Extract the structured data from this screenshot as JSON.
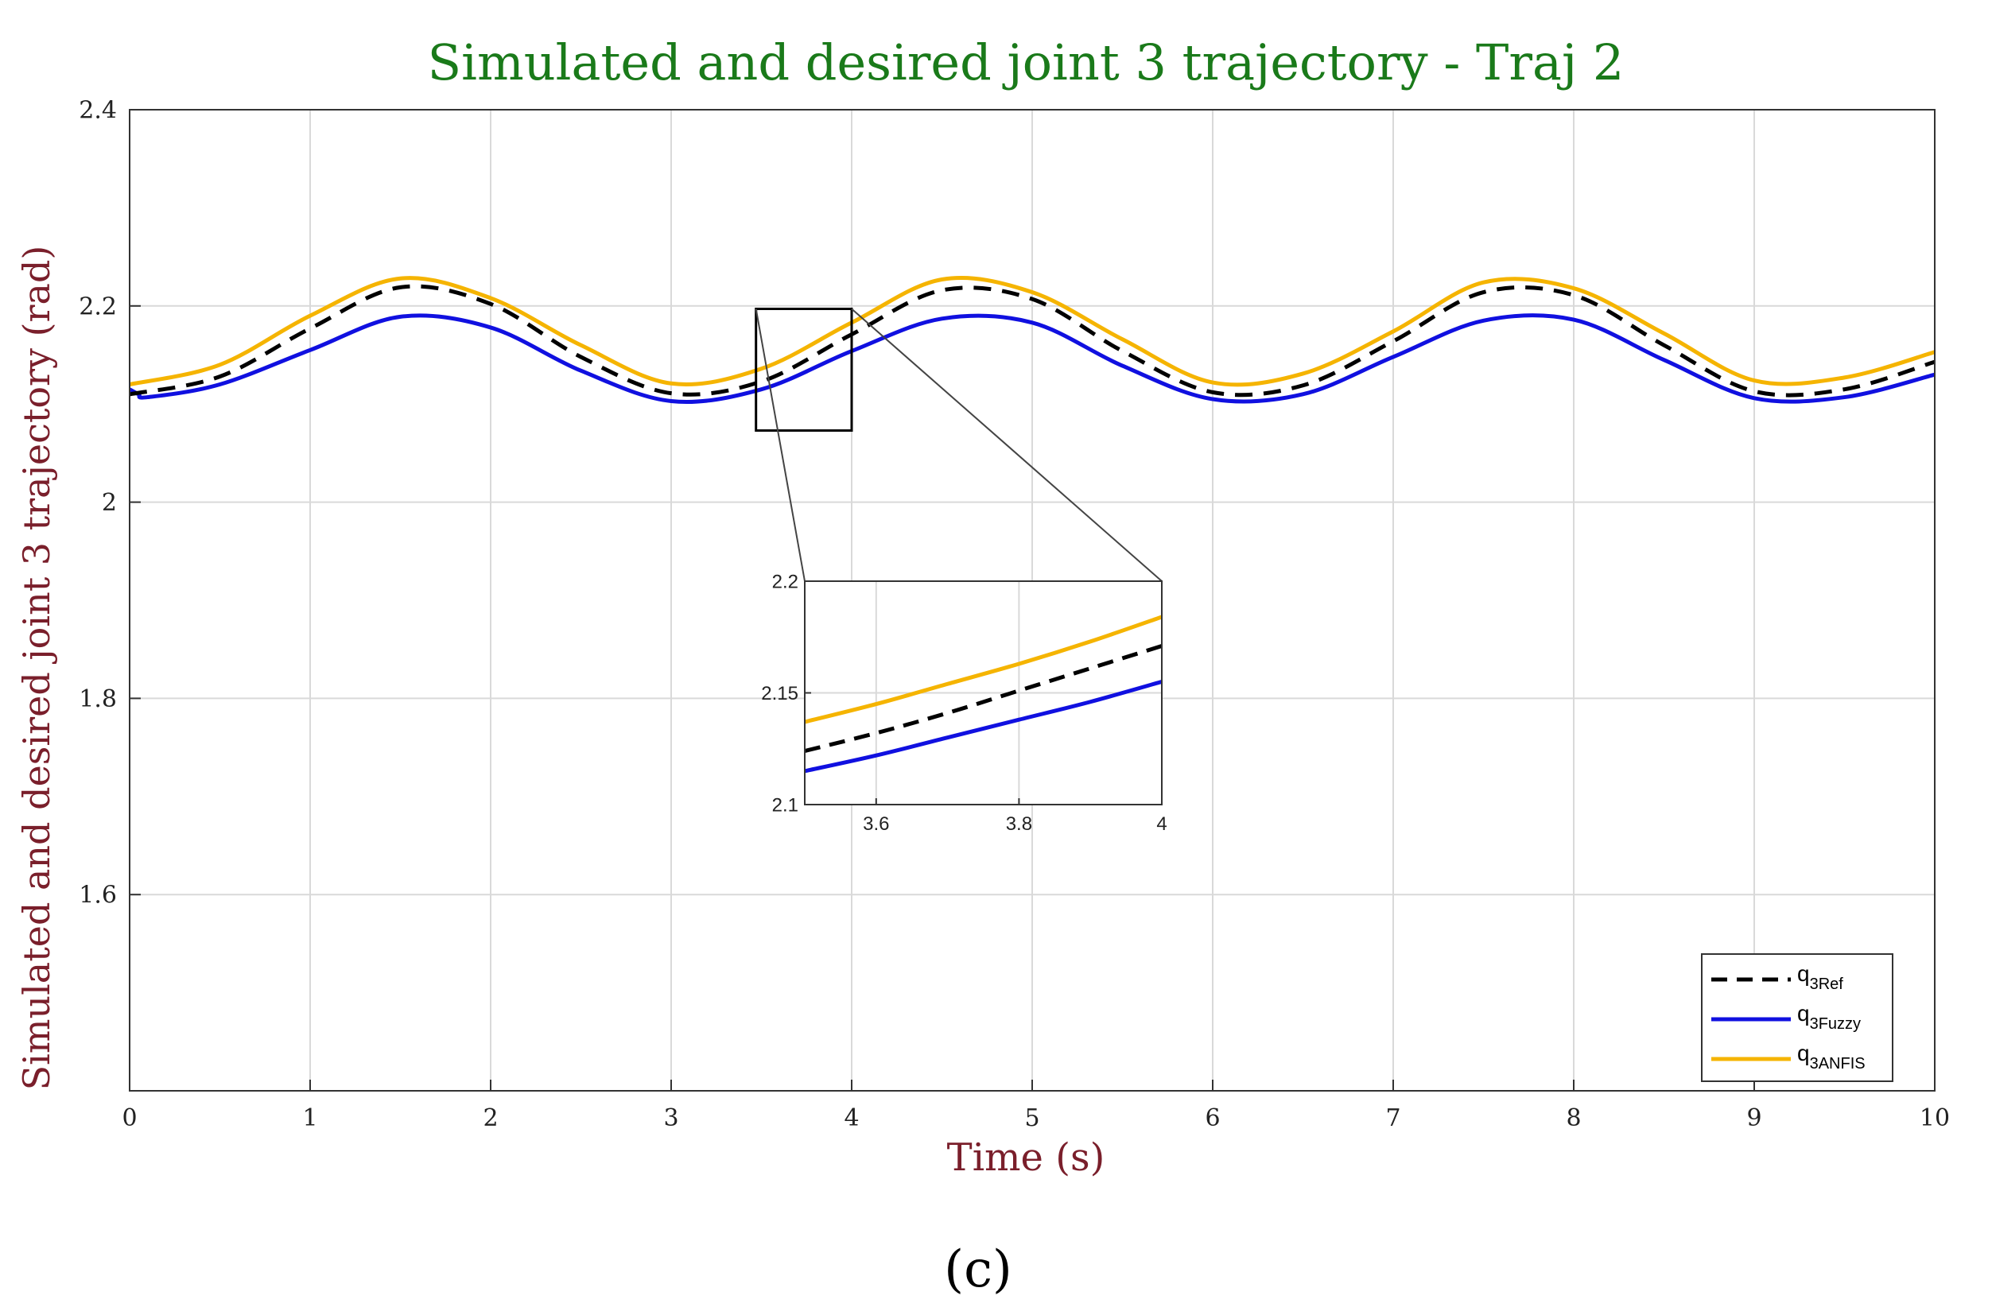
{
  "colors": {
    "title": "#1a7a1a",
    "axis_label": "#7a1f2b",
    "ref": "#000000",
    "fuzzy": "#1010e0",
    "anfis": "#f5b400",
    "grid": "#d9d9d9",
    "zoom_box": "#000000"
  },
  "chart_data": [
    {
      "type": "line",
      "title": "Simulated and desired joint 3 trajectory - Traj 2",
      "xlabel": "Time (s)",
      "ylabel": "Simulated and desired joint 3 trajectory (rad)",
      "xlim": [
        0,
        10
      ],
      "ylim": [
        1.4,
        2.4
      ],
      "xticks": [
        0,
        1,
        2,
        3,
        4,
        5,
        6,
        7,
        8,
        9,
        10
      ],
      "xtick_labels": [
        "0",
        "1",
        "2",
        "3",
        "4",
        "5",
        "6",
        "7",
        "8",
        "9",
        "10"
      ],
      "yticks": [
        1.6,
        1.8,
        2.0,
        2.2,
        2.4
      ],
      "ytick_labels": [
        "1.6",
        "1.8",
        "2",
        "2.2",
        "2.4"
      ],
      "grid": true,
      "legend_position": "bottom-right",
      "series": [
        {
          "name": "q3Ref",
          "label_main": "q",
          "label_sub": "3Ref",
          "style": "dashed",
          "color": "#000000",
          "x": [
            0,
            0.5,
            1.0,
            1.5,
            2.0,
            2.5,
            3.0,
            3.5,
            4.0,
            4.5,
            5.0,
            5.5,
            6.0,
            6.5,
            7.0,
            7.5,
            8.0,
            8.5,
            9.0,
            9.5,
            10.0
          ],
          "y": [
            2.11,
            2.128,
            2.177,
            2.219,
            2.202,
            2.148,
            2.111,
            2.123,
            2.171,
            2.216,
            2.207,
            2.154,
            2.112,
            2.119,
            2.164,
            2.214,
            2.211,
            2.16,
            2.113,
            2.115,
            2.143
          ]
        },
        {
          "name": "q3Fuzzy",
          "label_main": "q",
          "label_sub": "3Fuzzy",
          "style": "solid",
          "color": "#1010e0",
          "x": [
            0,
            0.05,
            0.1,
            0.5,
            1.0,
            1.5,
            2.0,
            2.5,
            3.0,
            3.5,
            4.0,
            4.5,
            5.0,
            5.5,
            6.0,
            6.5,
            7.0,
            7.5,
            8.0,
            8.5,
            9.0,
            9.5,
            10.0
          ],
          "y": [
            2.115,
            2.11,
            2.107,
            2.12,
            2.155,
            2.189,
            2.178,
            2.134,
            2.103,
            2.115,
            2.154,
            2.187,
            2.183,
            2.139,
            2.105,
            2.11,
            2.148,
            2.185,
            2.186,
            2.145,
            2.106,
            2.107,
            2.13
          ]
        },
        {
          "name": "q3ANFIS",
          "label_main": "q",
          "label_sub": "3ANFIS",
          "style": "solid",
          "color": "#f5b400",
          "x": [
            0,
            0.5,
            1.0,
            1.5,
            2.0,
            2.5,
            3.0,
            3.5,
            4.0,
            4.5,
            5.0,
            5.5,
            6.0,
            6.5,
            7.0,
            7.5,
            8.0,
            8.5,
            9.0,
            9.5,
            10.0
          ],
          "y": [
            2.12,
            2.14,
            2.19,
            2.228,
            2.208,
            2.16,
            2.121,
            2.136,
            2.183,
            2.227,
            2.214,
            2.166,
            2.122,
            2.131,
            2.174,
            2.224,
            2.218,
            2.172,
            2.124,
            2.127,
            2.153
          ]
        }
      ]
    },
    {
      "type": "line",
      "role": "inset-zoom",
      "xlim": [
        3.5,
        4.0
      ],
      "ylim": [
        2.1,
        2.2
      ],
      "zoom_region": {
        "x": [
          3.47,
          4.0
        ],
        "y": [
          2.073,
          2.197
        ]
      },
      "xticks": [
        3.6,
        3.8,
        4.0
      ],
      "xtick_labels": [
        "3.6",
        "3.8",
        "4"
      ],
      "yticks": [
        2.1,
        2.15,
        2.2
      ],
      "ytick_labels": [
        "2.1",
        "2.15",
        "2.2"
      ],
      "grid": true,
      "series": [
        {
          "name": "q3Ref",
          "style": "dashed",
          "color": "#000000",
          "x": [
            3.5,
            3.6,
            3.7,
            3.8,
            3.9,
            4.0
          ],
          "y": [
            2.124,
            2.132,
            2.141,
            2.151,
            2.161,
            2.171
          ]
        },
        {
          "name": "q3Fuzzy",
          "style": "solid",
          "color": "#1010e0",
          "x": [
            3.5,
            3.6,
            3.7,
            3.8,
            3.9,
            4.0
          ],
          "y": [
            2.115,
            2.122,
            2.13,
            2.138,
            2.146,
            2.155
          ]
        },
        {
          "name": "q3ANFIS",
          "style": "solid",
          "color": "#f5b400",
          "x": [
            3.5,
            3.6,
            3.7,
            3.8,
            3.9,
            4.0
          ],
          "y": [
            2.137,
            2.145,
            2.154,
            2.163,
            2.173,
            2.184
          ]
        }
      ]
    }
  ],
  "caption": "(c)"
}
